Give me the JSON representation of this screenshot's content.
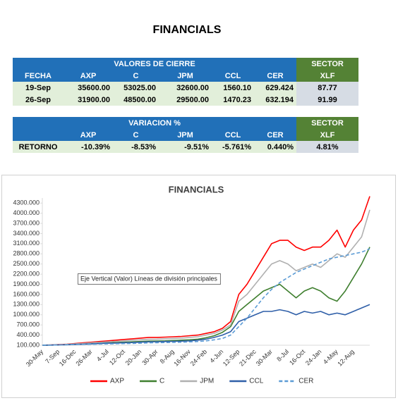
{
  "title": "FINANCIALS",
  "table1": {
    "group": "VALORES DE CIERRE",
    "sector": "SECTOR",
    "header": [
      "FECHA",
      "AXP",
      "C",
      "JPM",
      "CCL",
      "CER",
      "XLF"
    ],
    "rows": [
      [
        "19-Sep",
        "35600.00",
        "53025.00",
        "32600.00",
        "1560.10",
        "629.424",
        "87.77"
      ],
      [
        "26-Sep",
        "31900.00",
        "48500.00",
        "29500.00",
        "1470.23",
        "632.194",
        "91.99"
      ]
    ]
  },
  "table2": {
    "group": "VARIACION %",
    "sector": "SECTOR",
    "header": [
      "AXP",
      "C",
      "JPM",
      "CCL",
      "CER",
      "XLF"
    ],
    "rows": [
      [
        "RETORNO",
        "-10.39%",
        "-8.53%",
        "-9.51%",
        "-5.761%",
        "0.440%",
        "4.81%"
      ]
    ]
  },
  "chart_data": {
    "type": "line",
    "title": "FINANCIALS",
    "tooltip": "Eje Vertical (Valor)  Líneas de división principales",
    "categories": [
      "30-May",
      null,
      "7-Sep",
      null,
      "16-Dec",
      null,
      "26-Mar",
      null,
      "4-Jul",
      null,
      "12-Oct",
      null,
      "20-Jan",
      null,
      "30-Apr",
      null,
      "8-Aug",
      null,
      "16-Nov",
      null,
      "24-Feb",
      null,
      "4-Jun",
      null,
      "12-Sep",
      null,
      "21-Dec",
      null,
      "30-Mar",
      null,
      "8-Jul",
      null,
      "16-Oct",
      null,
      "24-Jan",
      null,
      "4-May",
      null,
      "12-Aug",
      null,
      null
    ],
    "ylim": [
      100,
      4450
    ],
    "yticks": [
      {
        "value": 100,
        "label": "100.000"
      },
      {
        "value": 400,
        "label": "400.000"
      },
      {
        "value": 700,
        "label": "700.000"
      },
      {
        "value": 1000,
        "label": "1000.000"
      },
      {
        "value": 1300,
        "label": "1300.000"
      },
      {
        "value": 1600,
        "label": "1600.000"
      },
      {
        "value": 1900,
        "label": "1900.000"
      },
      {
        "value": 2200,
        "label": "2200.000"
      },
      {
        "value": 2500,
        "label": "2500.000"
      },
      {
        "value": 2800,
        "label": "2800.000"
      },
      {
        "value": 3100,
        "label": "3100.000"
      },
      {
        "value": 3400,
        "label": "3400.000"
      },
      {
        "value": 3700,
        "label": "3700.000"
      },
      {
        "value": 4000,
        "label": "4000.000"
      },
      {
        "value": 4300,
        "label": "4300.000"
      }
    ],
    "legend": "bottom",
    "series": [
      {
        "name": "AXP",
        "color": "#ff0000",
        "values": [
          100,
          110,
          120,
          130,
          150,
          170,
          190,
          210,
          230,
          250,
          270,
          290,
          310,
          330,
          330,
          340,
          350,
          360,
          380,
          400,
          450,
          500,
          600,
          800,
          1600,
          1900,
          2300,
          2700,
          3100,
          3200,
          3200,
          3000,
          2900,
          3000,
          3000,
          3200,
          3500,
          3000,
          3500,
          3800,
          4500
        ]
      },
      {
        "name": "C",
        "color": "#3f7f2f",
        "values": [
          100,
          105,
          110,
          120,
          130,
          140,
          150,
          160,
          170,
          180,
          190,
          200,
          210,
          220,
          225,
          230,
          240,
          250,
          260,
          280,
          320,
          380,
          480,
          650,
          1100,
          1300,
          1500,
          1700,
          1800,
          1900,
          1700,
          1500,
          1700,
          1800,
          1700,
          1500,
          1400,
          1700,
          2100,
          2500,
          3000
        ]
      },
      {
        "name": "JPM",
        "color": "#b0b0b0",
        "values": [
          100,
          110,
          115,
          125,
          140,
          155,
          170,
          185,
          200,
          215,
          230,
          245,
          260,
          275,
          280,
          290,
          300,
          310,
          330,
          350,
          400,
          450,
          550,
          700,
          1400,
          1600,
          1900,
          2200,
          2500,
          2600,
          2500,
          2300,
          2400,
          2500,
          2400,
          2600,
          2800,
          2700,
          3000,
          3300,
          4100
        ]
      },
      {
        "name": "CCL",
        "color": "#2f5fa8",
        "values": [
          100,
          105,
          110,
          115,
          125,
          130,
          140,
          150,
          160,
          165,
          175,
          180,
          190,
          200,
          205,
          210,
          215,
          220,
          230,
          250,
          280,
          330,
          400,
          500,
          800,
          900,
          1000,
          1100,
          1100,
          1150,
          1100,
          1000,
          1100,
          1050,
          1100,
          1000,
          1050,
          1000,
          1100,
          1200,
          1300
        ]
      },
      {
        "name": "CER",
        "color": "#5b9bd5",
        "dashed": true,
        "values": [
          100,
          105,
          110,
          115,
          120,
          125,
          130,
          135,
          140,
          145,
          150,
          155,
          160,
          170,
          175,
          180,
          185,
          190,
          200,
          210,
          230,
          260,
          300,
          400,
          650,
          900,
          1200,
          1500,
          1750,
          1950,
          2100,
          2250,
          2350,
          2450,
          2550,
          2650,
          2700,
          2750,
          2800,
          2850,
          2950
        ]
      }
    ]
  }
}
